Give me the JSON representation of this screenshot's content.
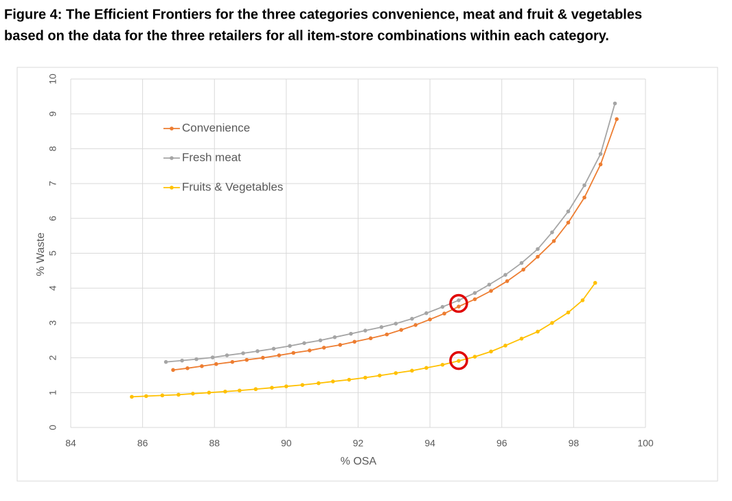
{
  "chart_data": {
    "type": "line",
    "title": [
      "Figure 4: The Efficient Frontiers for the three categories convenience, meat and fruit & vegetables",
      "based on the data for the three retailers for all item-store combinations within each category."
    ],
    "xlabel": "% OSA",
    "ylabel": "% Waste",
    "xlim": [
      84,
      100
    ],
    "xticks": [
      84,
      86,
      88,
      90,
      92,
      94,
      96,
      98,
      100
    ],
    "ylim": [
      0,
      10
    ],
    "yticks": [
      0,
      1,
      2,
      3,
      4,
      5,
      6,
      7,
      8,
      9,
      10
    ],
    "grid": true,
    "legend": "upper left",
    "series": [
      {
        "name": "Convenience",
        "color": "#ED7D31",
        "x": [
          86.85,
          87.25,
          87.65,
          88.05,
          88.5,
          88.9,
          89.35,
          89.8,
          90.2,
          90.65,
          91.05,
          91.5,
          91.9,
          92.35,
          92.8,
          93.2,
          93.6,
          94.0,
          94.4,
          94.8,
          95.25,
          95.7,
          96.15,
          96.6,
          97.0,
          97.45,
          97.85,
          98.3,
          98.75,
          99.2
        ],
        "values": [
          1.65,
          1.7,
          1.76,
          1.82,
          1.88,
          1.94,
          2.0,
          2.07,
          2.14,
          2.21,
          2.29,
          2.37,
          2.46,
          2.56,
          2.67,
          2.8,
          2.94,
          3.1,
          3.27,
          3.47,
          3.68,
          3.92,
          4.2,
          4.53,
          4.9,
          5.35,
          5.88,
          6.6,
          7.55,
          8.85
        ]
      },
      {
        "name": "Fresh meat",
        "color": "#A5A5A5",
        "x": [
          86.65,
          87.1,
          87.5,
          87.95,
          88.35,
          88.8,
          89.2,
          89.65,
          90.1,
          90.5,
          90.95,
          91.35,
          91.8,
          92.2,
          92.65,
          93.05,
          93.5,
          93.9,
          94.35,
          94.8,
          95.25,
          95.65,
          96.1,
          96.55,
          97.0,
          97.4,
          97.85,
          98.3,
          98.75,
          99.15
        ],
        "values": [
          1.88,
          1.92,
          1.96,
          2.01,
          2.07,
          2.13,
          2.19,
          2.26,
          2.34,
          2.42,
          2.5,
          2.59,
          2.69,
          2.78,
          2.88,
          2.98,
          3.12,
          3.28,
          3.46,
          3.65,
          3.86,
          4.1,
          4.38,
          4.72,
          5.12,
          5.6,
          6.2,
          6.95,
          7.85,
          9.3
        ]
      },
      {
        "name": "Fruits & Vegetables",
        "color": "#FFC000",
        "x": [
          85.7,
          86.1,
          86.55,
          87.0,
          87.4,
          87.85,
          88.3,
          88.7,
          89.15,
          89.6,
          90.0,
          90.45,
          90.9,
          91.3,
          91.75,
          92.2,
          92.6,
          93.05,
          93.5,
          93.9,
          94.35,
          94.8,
          95.25,
          95.7,
          96.1,
          96.55,
          97.0,
          97.4,
          97.85,
          98.25,
          98.6
        ],
        "values": [
          0.88,
          0.9,
          0.92,
          0.94,
          0.97,
          1.0,
          1.03,
          1.06,
          1.1,
          1.14,
          1.18,
          1.22,
          1.27,
          1.32,
          1.37,
          1.43,
          1.49,
          1.56,
          1.63,
          1.71,
          1.8,
          1.91,
          2.03,
          2.18,
          2.35,
          2.55,
          2.75,
          3.0,
          3.3,
          3.65,
          4.15
        ]
      }
    ],
    "highlights": [
      {
        "x": 94.8,
        "y": 3.56,
        "color": "#E00000"
      },
      {
        "x": 94.8,
        "y": 1.92,
        "color": "#E00000"
      }
    ]
  }
}
